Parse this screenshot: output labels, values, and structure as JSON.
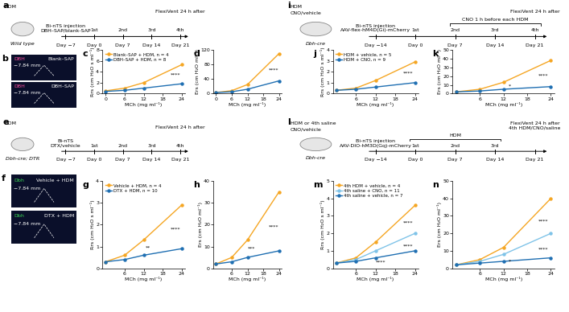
{
  "chart_data": [
    {
      "label": "c",
      "type": "line",
      "x": [
        0,
        6,
        12,
        24
      ],
      "xlim": [
        -1,
        25
      ],
      "xticks": [
        0,
        6,
        12,
        18,
        24
      ],
      "ylim": [
        0,
        8
      ],
      "yticks": [
        0,
        2,
        4,
        6,
        8
      ],
      "xlabel": "MCh (mg ml⁻¹)",
      "ylabel": "Rrs (cm H₂O s ml⁻¹)",
      "legend": "upper left",
      "series": [
        {
          "name": "Blank–SAP + HDM, n = 4",
          "color": "#f5a623",
          "marker": "o",
          "values": [
            0.5,
            1.0,
            2.0,
            5.3
          ]
        },
        {
          "name": "DBH–SAP + HDM, n = 8",
          "color": "#1f6fb2",
          "marker": "o",
          "values": [
            0.4,
            0.6,
            1.0,
            1.8
          ]
        }
      ],
      "annotations": [
        {
          "x": 22,
          "y": 3.4,
          "text": "****"
        }
      ]
    },
    {
      "label": "d",
      "type": "line",
      "x": [
        0,
        6,
        12,
        24
      ],
      "xlim": [
        -1,
        25
      ],
      "xticks": [
        0,
        6,
        12,
        18,
        24
      ],
      "ylim": [
        0,
        120
      ],
      "yticks": [
        0,
        40,
        80,
        120
      ],
      "xlabel": "MCh (mg ml⁻¹)",
      "ylabel": "Ers (cm H₂O ml⁻¹)",
      "series": [
        {
          "name": "Blank–SAP + HDM, n = 4",
          "color": "#f5a623",
          "marker": "o",
          "values": [
            3,
            8,
            25,
            110
          ]
        },
        {
          "name": "DBH–SAP + HDM, n = 8",
          "color": "#1f6fb2",
          "marker": "o",
          "values": [
            3,
            5,
            12,
            35
          ]
        }
      ],
      "annotations": [
        {
          "x": 22,
          "y": 65,
          "text": "****"
        }
      ]
    },
    {
      "label": "g",
      "type": "line",
      "x": [
        0,
        6,
        12,
        24
      ],
      "xlim": [
        -1,
        25
      ],
      "xticks": [
        6,
        12,
        18,
        24
      ],
      "ylim": [
        0,
        4
      ],
      "yticks": [
        0,
        1,
        2,
        3,
        4
      ],
      "xlabel": "MCh (mg ml⁻¹)",
      "ylabel": "Rrs (cm H₂O s ml⁻¹)",
      "legend": "upper left",
      "series": [
        {
          "name": "Vehicle + HDM, n = 4",
          "color": "#f5a623",
          "marker": "o",
          "values": [
            0.3,
            0.6,
            1.3,
            2.9
          ]
        },
        {
          "name": "DTX + HDM, n = 10",
          "color": "#1f6fb2",
          "marker": "o",
          "values": [
            0.3,
            0.4,
            0.6,
            0.9
          ]
        }
      ],
      "annotations": [
        {
          "x": 13.5,
          "y": 0.95,
          "text": "**"
        },
        {
          "x": 22,
          "y": 1.8,
          "text": "****"
        }
      ]
    },
    {
      "label": "h",
      "type": "line",
      "x": [
        0,
        6,
        12,
        24
      ],
      "xlim": [
        -1,
        25
      ],
      "xticks": [
        6,
        12,
        18,
        24
      ],
      "ylim": [
        0,
        40
      ],
      "yticks": [
        0,
        10,
        20,
        30,
        40
      ],
      "xlabel": "MCh (mg ml⁻¹)",
      "ylabel": "Ers (cm H₂O ml⁻¹)",
      "series": [
        {
          "name": "Vehicle + HDM, n = 4",
          "color": "#f5a623",
          "marker": "o",
          "values": [
            2,
            5,
            13,
            35
          ]
        },
        {
          "name": "DTX + HDM, n = 10",
          "color": "#1f6fb2",
          "marker": "o",
          "values": [
            2,
            3,
            5,
            8
          ]
        }
      ],
      "annotations": [
        {
          "x": 13.5,
          "y": 9,
          "text": "***"
        },
        {
          "x": 22,
          "y": 19,
          "text": "****"
        }
      ]
    },
    {
      "label": "j",
      "type": "line",
      "x": [
        0,
        6,
        12,
        24
      ],
      "xlim": [
        -1,
        25
      ],
      "xticks": [
        6,
        12,
        18,
        24
      ],
      "ylim": [
        0,
        4
      ],
      "yticks": [
        0,
        1,
        2,
        3,
        4
      ],
      "xlabel": "MCh (mg ml⁻¹)",
      "ylabel": "Rrs (cm H₂O s ml⁻¹)",
      "legend": "upper left",
      "series": [
        {
          "name": "HDM + vehicle, n = 5",
          "color": "#f5a623",
          "marker": "o",
          "values": [
            0.3,
            0.5,
            1.2,
            2.9
          ]
        },
        {
          "name": "HDM + CNO, n = 9",
          "color": "#1f6fb2",
          "marker": "o",
          "values": [
            0.3,
            0.4,
            0.6,
            1.0
          ]
        }
      ],
      "annotations": [
        {
          "x": 22,
          "y": 1.9,
          "text": "****"
        }
      ]
    },
    {
      "label": "k",
      "type": "line",
      "x": [
        0,
        6,
        12,
        24
      ],
      "xlim": [
        -1,
        25
      ],
      "xticks": [
        6,
        12,
        18,
        24
      ],
      "ylim": [
        0,
        50
      ],
      "yticks": [
        0,
        10,
        20,
        30,
        40,
        50
      ],
      "xlabel": "MCh (mg ml⁻¹)",
      "ylabel": "Ers (cm H₂O ml⁻¹)",
      "series": [
        {
          "name": "HDM + vehicle, n = 5",
          "color": "#f5a623",
          "marker": "o",
          "values": [
            2,
            5,
            13,
            38
          ]
        },
        {
          "name": "HDM + CNO, n = 9",
          "color": "#1f6fb2",
          "marker": "o",
          "values": [
            2,
            3,
            5,
            8
          ]
        }
      ],
      "annotations": [
        {
          "x": 13.5,
          "y": 9,
          "text": "*"
        },
        {
          "x": 22,
          "y": 21,
          "text": "****"
        }
      ]
    },
    {
      "label": "m",
      "type": "line",
      "x": [
        0,
        6,
        12,
        24
      ],
      "xlim": [
        -1,
        25
      ],
      "xticks": [
        6,
        12,
        18,
        24
      ],
      "ylim": [
        0,
        5
      ],
      "yticks": [
        0,
        1,
        2,
        3,
        4,
        5
      ],
      "xlabel": "MCh (mg ml⁻¹)",
      "ylabel": "Rrs (cm H₂O s ml⁻¹)",
      "legend": "upper left",
      "series": [
        {
          "name": "4th HDM + vehicle, n = 4",
          "color": "#f5a623",
          "marker": "o",
          "values": [
            0.3,
            0.6,
            1.5,
            3.6
          ]
        },
        {
          "name": "4th saline + CNO, n = 11",
          "color": "#7fc3e8",
          "marker": "o",
          "values": [
            0.3,
            0.5,
            1.0,
            2.0
          ]
        },
        {
          "name": "4th saline + vehicle, n = 7",
          "color": "#1f6fb2",
          "marker": "o",
          "values": [
            0.3,
            0.4,
            0.6,
            1.0
          ]
        }
      ],
      "annotations": [
        {
          "x": 22,
          "y": 2.6,
          "text": "****"
        },
        {
          "x": 22,
          "y": 1.25,
          "text": "****"
        },
        {
          "x": 13.5,
          "y": 0.35,
          "text": "****"
        }
      ]
    },
    {
      "label": "n",
      "type": "line",
      "x": [
        0,
        6,
        12,
        24
      ],
      "xlim": [
        -1,
        25
      ],
      "xticks": [
        6,
        12,
        18,
        24
      ],
      "ylim": [
        0,
        50
      ],
      "yticks": [
        0,
        10,
        20,
        30,
        40,
        50
      ],
      "xlabel": "MCh (mg ml⁻¹)",
      "ylabel": "Ers (cm H₂O ml⁻¹)",
      "series": [
        {
          "name": "4th HDM + vehicle, n = 4",
          "color": "#f5a623",
          "marker": "o",
          "values": [
            2,
            5,
            12,
            40
          ]
        },
        {
          "name": "4th saline + CNO, n = 11",
          "color": "#7fc3e8",
          "marker": "o",
          "values": [
            2,
            4,
            8,
            20
          ]
        },
        {
          "name": "4th saline + vehicle, n = 7",
          "color": "#1f6fb2",
          "marker": "o",
          "values": [
            2,
            3,
            4,
            6
          ]
        }
      ],
      "annotations": [
        {
          "x": 22,
          "y": 27,
          "text": "****"
        },
        {
          "x": 22,
          "y": 11,
          "text": "****"
        },
        {
          "x": 13.5,
          "y": 4,
          "text": "*"
        }
      ]
    }
  ],
  "schematics": [
    {
      "label": "a",
      "mouse": "Wild type",
      "left_texts": [
        "HDM"
      ],
      "events": [
        {
          "below": "Day −7",
          "above": "Bi-nTS injection\nDBH–SAP/blank-SAP"
        },
        {
          "below": "Day 0",
          "above": "1st"
        },
        {
          "below": "Day 7",
          "above": "2nd"
        },
        {
          "below": "Day 14",
          "above": "3rd"
        },
        {
          "below": "Day 21",
          "above": "4th",
          "top": "FlexiVent 24 h after"
        }
      ]
    },
    {
      "label": "e",
      "mouse": "Dbh-cre; DTR",
      "left_texts": [
        "HDM"
      ],
      "events": [
        {
          "below": "Day −7",
          "above": "Bi-nTS\nDTX/vehicle"
        },
        {
          "below": "Day 0",
          "above": "1st"
        },
        {
          "below": "Day 7",
          "above": "2nd"
        },
        {
          "below": "Day 14",
          "above": "3rd"
        },
        {
          "below": "Day 21",
          "above": "4th",
          "top": "FlexiVent 24 h after"
        }
      ]
    },
    {
      "label": "i",
      "mouse": "Dbh-cre",
      "left_texts": [
        "HDM",
        "CNO/vehicle"
      ],
      "events": [
        {
          "below": "Day −14",
          "above": "Bi-nTS injection\nAAV-flex-hM4D(Gi)-mCherry"
        },
        {
          "below": "Day 0",
          "above": "1st"
        },
        {
          "below": "Day 7",
          "above": "2nd"
        },
        {
          "below": "Day 14",
          "above": "3rd"
        },
        {
          "below": "Day 21",
          "above": "4th",
          "top": "FlexiVent 24 h after"
        }
      ],
      "bracket": {
        "text": "CNO 1 h before each HDM",
        "from": 2,
        "to": 4
      }
    },
    {
      "label": "l",
      "mouse": "Dbh-cre",
      "left_texts": [
        "HDM or 4th saline",
        "CNO/vehicle"
      ],
      "events": [
        {
          "below": "Day −14",
          "above": "Bi-nTS injection\nAAV-DIO-hM3D(Gq)-mCherry"
        },
        {
          "below": "Day 0",
          "above": "1st"
        },
        {
          "below": "Day 7",
          "above": "2nd"
        },
        {
          "below": "Day 14",
          "above": "3rd"
        },
        {
          "below": "Day 21",
          "top": "FlexiVent 24 h after\n4th HDM/CNO/saline"
        }
      ],
      "bracket": {
        "text": "HDM",
        "from": 1,
        "to": 3
      }
    }
  ],
  "images": [
    {
      "label": "b",
      "stain_color": "#ff4fa0",
      "panels": [
        {
          "stain": "DBH",
          "level": "−7.84 mm",
          "condition": "Blank–SAP"
        },
        {
          "stain": "DBH",
          "level": "−7.84 mm",
          "condition": "DBH–SAP"
        }
      ]
    },
    {
      "label": "f",
      "stain_color": "#39d353",
      "panels": [
        {
          "stain": "Dbh",
          "level": "−7.84 mm",
          "condition": "Vehicle + HDM"
        },
        {
          "stain": "Dbh",
          "level": "−7.84 mm",
          "condition": "DTX + HDM"
        }
      ]
    }
  ]
}
